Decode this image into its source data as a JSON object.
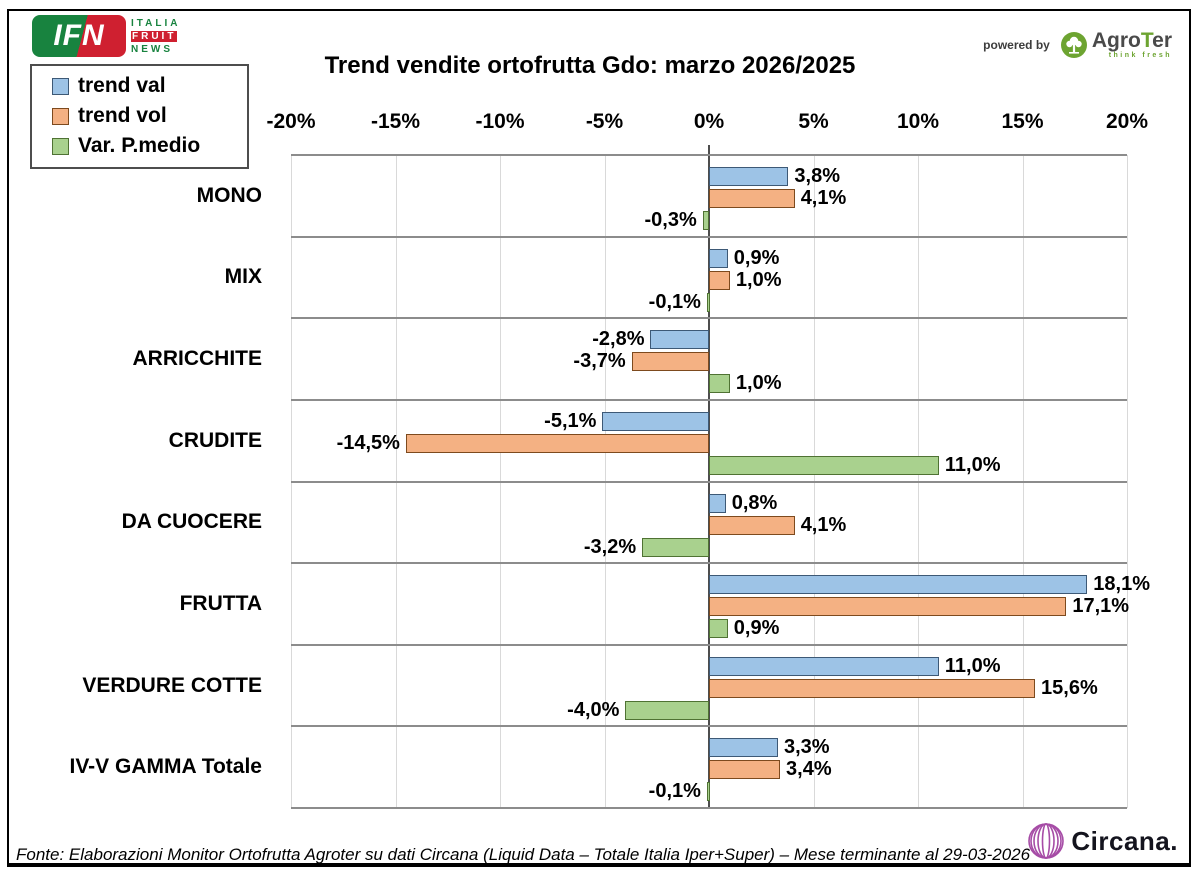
{
  "header": {
    "ifn": {
      "acronym": "IFN",
      "line1": "ITALIA",
      "line2": "FRUIT",
      "line3": "NEWS"
    },
    "powered_by": "powered by",
    "agroter": {
      "name_agro": "Agro",
      "name_t": "T",
      "name_er": "er",
      "tagline": "think fresh"
    }
  },
  "title": "Trend vendite ortofrutta Gdo: marzo 2026/2025",
  "legend": {
    "items": [
      {
        "label": "trend val",
        "color": "#9dc3e6",
        "border": "#3d5976"
      },
      {
        "label": "trend vol",
        "color": "#f4b183",
        "border": "#7d4a1e"
      },
      {
        "label": "Var. P.medio",
        "color": "#a9d18e",
        "border": "#4f7233"
      }
    ]
  },
  "chart_data": {
    "type": "bar",
    "orientation": "horizontal",
    "title": "Trend vendite ortofrutta Gdo: marzo 2026/2025",
    "xlabel": "",
    "ylabel": "",
    "xlim": [
      -20,
      20
    ],
    "tick_step": 5,
    "tick_labels": [
      "-20%",
      "-15%",
      "-10%",
      "-5%",
      "0%",
      "5%",
      "10%",
      "15%",
      "20%"
    ],
    "grid": true,
    "legend_position": "top-left",
    "categories": [
      "MONO",
      "MIX",
      "ARRICCHITE",
      "CRUDITE",
      "DA CUOCERE",
      "FRUTTA",
      "VERDURE COTTE",
      "IV-V GAMMA Totale"
    ],
    "series": [
      {
        "name": "trend val",
        "color": "#9dc3e6",
        "border": "#3d5976",
        "values": [
          3.8,
          0.9,
          -2.8,
          -5.1,
          0.8,
          18.1,
          11.0,
          3.3
        ],
        "labels": [
          "3,8%",
          "0,9%",
          "-2,8%",
          "-5,1%",
          "0,8%",
          "18,1%",
          "11,0%",
          "3,3%"
        ]
      },
      {
        "name": "trend vol",
        "color": "#f4b183",
        "border": "#7d4a1e",
        "values": [
          4.1,
          1.0,
          -3.7,
          -14.5,
          4.1,
          17.1,
          15.6,
          3.4
        ],
        "labels": [
          "4,1%",
          "1,0%",
          "-3,7%",
          "-14,5%",
          "4,1%",
          "17,1%",
          "15,6%",
          "3,4%"
        ]
      },
      {
        "name": "Var. P.medio",
        "color": "#a9d18e",
        "border": "#4f7233",
        "values": [
          -0.3,
          -0.1,
          1.0,
          11.0,
          -3.2,
          0.9,
          -4.0,
          -0.1
        ],
        "labels": [
          "-0,3%",
          "-0,1%",
          "1,0%",
          "11,0%",
          "-3,2%",
          "0,9%",
          "-4,0%",
          "-0,1%"
        ]
      }
    ]
  },
  "footer": {
    "source": "Fonte: Elaborazioni Monitor Ortofrutta Agroter su dati Circana (Liquid Data – Totale Italia Iper+Super) – Mese terminante al 29-03-2026",
    "circana": "Circana."
  },
  "colors": {
    "grid": "#d9d9d9",
    "row_separator": "#8c8c8c",
    "zero_line": "#4d4d4d",
    "ifn_green": "#18833f",
    "ifn_red": "#cf2030",
    "agroter_green": "#6da431",
    "circana_purple": "#a64ca6"
  }
}
